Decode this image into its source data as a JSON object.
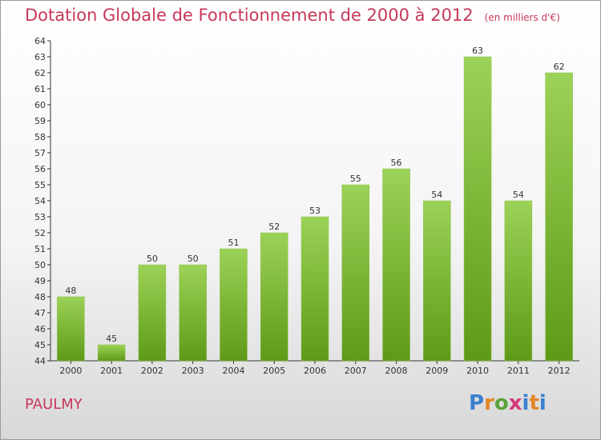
{
  "title": "Dotation Globale de Fonctionnement de 2000 à 2012",
  "unit": "(en milliers d'€)",
  "commune": "PAULMY",
  "logo": {
    "text": "Proxiti",
    "colors": [
      "#3a7fd0",
      "#e2862a",
      "#5aa238",
      "#d43a7c",
      "#3a7fd0",
      "#e2862a",
      "#3a7fd0"
    ]
  },
  "colors": {
    "bar_top": "#9cd257",
    "bar_bottom": "#5e9a18",
    "title": "#c8385a"
  },
  "chart_data": {
    "type": "bar",
    "categories": [
      "2000",
      "2001",
      "2002",
      "2003",
      "2004",
      "2005",
      "2006",
      "2007",
      "2008",
      "2009",
      "2010",
      "2011",
      "2012"
    ],
    "values": [
      48,
      45,
      50,
      50,
      51,
      52,
      53,
      55,
      56,
      54,
      63,
      54,
      62
    ],
    "ylim": [
      44,
      64
    ],
    "yticks": [
      44,
      45,
      46,
      47,
      48,
      49,
      50,
      51,
      52,
      53,
      54,
      55,
      56,
      57,
      58,
      59,
      60,
      61,
      62,
      63,
      64
    ],
    "grid": false
  }
}
